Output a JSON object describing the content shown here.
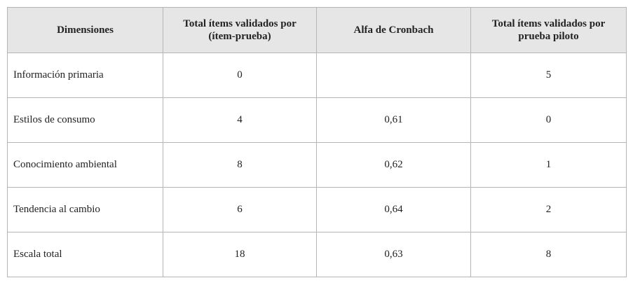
{
  "table": {
    "header": [
      "Dimensiones",
      "Total ítems validados por (ítem-prueba)",
      "Alfa de Cronbach",
      "Total ítems validados por prueba piloto"
    ],
    "rows": [
      [
        "Información primaria",
        "0",
        null,
        "5"
      ],
      [
        "Estilos de consumo",
        "4",
        "0,61",
        "0"
      ],
      [
        "Conocimiento ambiental",
        "8",
        "0,62",
        "1"
      ],
      [
        "Tendencia al cambio",
        "6",
        "0,64",
        "2"
      ],
      [
        "Escala total",
        "18",
        "0,63",
        "8"
      ]
    ]
  }
}
